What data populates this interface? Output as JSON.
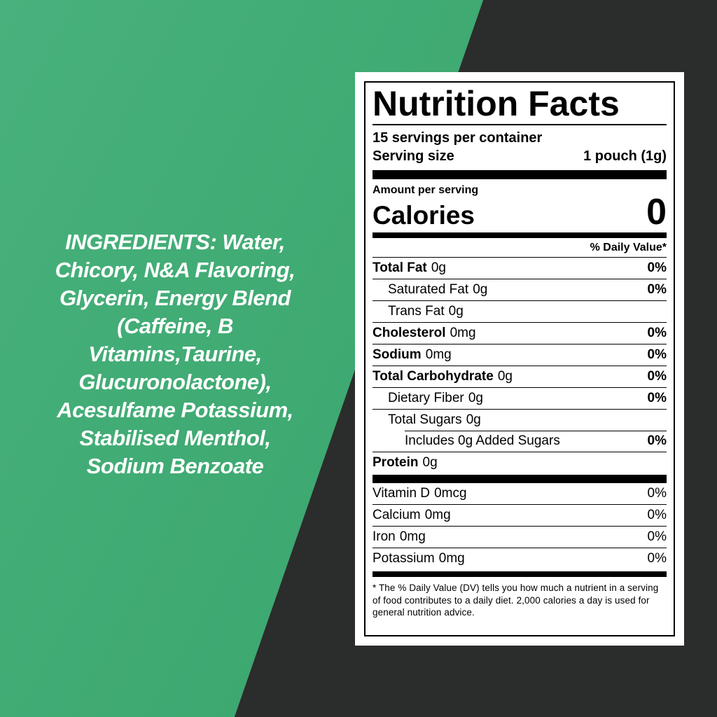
{
  "colors": {
    "background_green": "#3faa72",
    "background_dark": "#2b2c2c",
    "label_background": "#ffffff",
    "label_text": "#000000",
    "ingredients_text_color": "#ffffff"
  },
  "ingredients": {
    "text": "INGREDIENTS: Water,\nChicory, N&A Flavoring,\nGlycerin, Energy Blend\n(Caffeine, B\nVitamins,Taurine,\nGlucuronolactone),\nAcesulfame Potassium,\nStabilised Menthol,\nSodium Benzoate"
  },
  "nutrition": {
    "title": "Nutrition Facts",
    "servings_per_container": "15 servings per container",
    "serving_size_label": "Serving size",
    "serving_size_value": "1 pouch (1g)",
    "amount_per_serving": "Amount per serving",
    "calories_label": "Calories",
    "calories_value": "0",
    "daily_value_header": "% Daily Value*",
    "rows": [
      {
        "name": "Total Fat",
        "amount": "0g",
        "dv": "0%"
      },
      {
        "name": "Saturated Fat",
        "amount": "0g",
        "dv": "0%"
      },
      {
        "name": "Trans Fat",
        "amount": "0g",
        "dv": ""
      },
      {
        "name": "Cholesterol",
        "amount": "0mg",
        "dv": "0%"
      },
      {
        "name": "Sodium",
        "amount": "0mg",
        "dv": "0%"
      },
      {
        "name": "Total Carbohydrate",
        "amount": "0g",
        "dv": "0%"
      },
      {
        "name": "Dietary Fiber",
        "amount": "0g",
        "dv": "0%"
      },
      {
        "name": "Total Sugars",
        "amount": "0g",
        "dv": ""
      },
      {
        "name": "Includes 0g Added Sugars",
        "amount": "",
        "dv": "0%"
      },
      {
        "name": "Protein",
        "amount": "0g",
        "dv": ""
      }
    ],
    "micronutrients": [
      {
        "name": "Vitamin D",
        "amount": "0mcg",
        "dv": "0%"
      },
      {
        "name": "Calcium",
        "amount": "0mg",
        "dv": "0%"
      },
      {
        "name": "Iron",
        "amount": "0mg",
        "dv": "0%"
      },
      {
        "name": "Potassium",
        "amount": "0mg",
        "dv": "0%"
      }
    ],
    "footnote": "* The % Daily Value (DV) tells you how much a nutrient in a serving of food contributes to a daily diet. 2,000 calories a day is used for general nutrition advice."
  }
}
